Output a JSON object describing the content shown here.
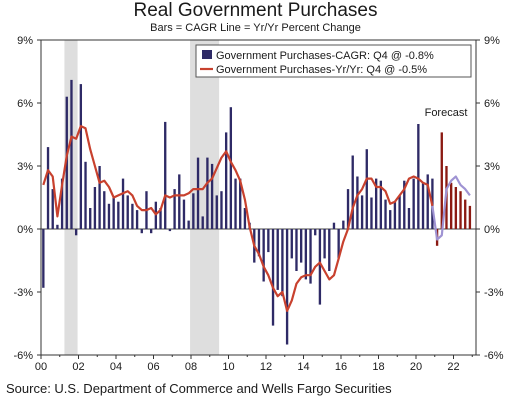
{
  "chart_data": {
    "type": "bar",
    "title": "Real Government Purchases",
    "subtitle": "Bars = CAGR     Line = Yr/Yr Percent Change",
    "x_start": 2000.0,
    "x_step": 0.25,
    "xlim": [
      2000,
      2023.2
    ],
    "x_tick_values": [
      2000,
      2002,
      2004,
      2006,
      2008,
      2010,
      2012,
      2014,
      2016,
      2018,
      2020,
      2022
    ],
    "x_tick_labels": [
      "00",
      "02",
      "04",
      "06",
      "08",
      "10",
      "12",
      "14",
      "16",
      "18",
      "20",
      "22"
    ],
    "ylim": [
      -6,
      9
    ],
    "y_ticks": [
      -6,
      -3,
      0,
      3,
      6,
      9
    ],
    "y_tick_labels": [
      "-6%",
      "-3%",
      "0%",
      "3%",
      "6%",
      "9%"
    ],
    "recession_shading": [
      [
        2001.25,
        2001.95
      ],
      [
        2007.95,
        2009.5
      ]
    ],
    "annotation": "Forecast",
    "series": [
      {
        "name": "Government Purchases-CAGR: Q4 @ -0.8%",
        "kind": "bar",
        "color": "#2e2a66",
        "forecast_color": "#8b1a12",
        "forecast_from_index": 84,
        "values": [
          -2.8,
          3.9,
          1.9,
          0.2,
          2.4,
          6.3,
          7.1,
          -0.3,
          6.9,
          3.2,
          1.0,
          2.0,
          3.0,
          1.8,
          1.2,
          1.5,
          1.3,
          2.4,
          1.6,
          1.2,
          0.9,
          -0.2,
          1.8,
          -0.2,
          1.3,
          1.0,
          5.1,
          -0.1,
          1.9,
          2.6,
          1.4,
          0.4,
          1.7,
          3.4,
          0.6,
          3.4,
          3.1,
          1.6,
          1.8,
          4.6,
          5.8,
          2.4,
          2.4,
          1.0,
          0.3,
          -1.6,
          -1.3,
          -2.5,
          -1.1,
          -4.6,
          -2.9,
          -3.2,
          -5.5,
          -1.4,
          -2.0,
          -1.6,
          -2.4,
          -2.6,
          -0.3,
          -3.6,
          -1.4,
          -2.0,
          0.3,
          -1.4,
          0.4,
          1.9,
          3.5,
          2.5,
          1.6,
          3.8,
          1.5,
          2.4,
          2.3,
          1.4,
          0.9,
          1.3,
          1.6,
          2.3,
          1.0,
          2.4,
          5.0,
          2.2,
          2.6,
          2.4,
          -0.8,
          4.6,
          3.0,
          2.2,
          2.0,
          1.8,
          1.4,
          1.1
        ],
        "projected_values": [
          -0.1,
          -0.5
        ]
      },
      {
        "name": "Government Purchases-Yr/Yr: Q4 @ -0.5%",
        "kind": "line",
        "color": "#c8412e",
        "forecast_color": "#9f93d3",
        "forecast_from_index": 84,
        "values": [
          2.1,
          2.8,
          2.5,
          0.6,
          2.1,
          3.5,
          4.4,
          4.3,
          4.9,
          4.8,
          3.8,
          3.0,
          2.2,
          2.3,
          2.0,
          1.5,
          1.6,
          1.7,
          1.8,
          1.6,
          1.1,
          0.9,
          0.9,
          1.0,
          0.7,
          0.9,
          1.6,
          1.5,
          1.6,
          1.6,
          1.6,
          1.7,
          1.9,
          1.9,
          1.9,
          2.2,
          2.4,
          2.9,
          3.4,
          3.7,
          3.2,
          2.8,
          2.3,
          1.4,
          0.1,
          -0.8,
          -1.2,
          -1.8,
          -2.2,
          -2.8,
          -3.2,
          -3.0,
          -3.9,
          -3.4,
          -2.6,
          -2.3,
          -2.2,
          -2.2,
          -1.8,
          -1.6,
          -2.0,
          -2.4,
          -2.2,
          -1.4,
          -0.6,
          0.0,
          1.0,
          1.6,
          1.9,
          2.4,
          2.4,
          2.0,
          2.0,
          1.8,
          1.2,
          1.3,
          1.6,
          1.9,
          2.4,
          2.5,
          2.4,
          2.2,
          2.1,
          1.1,
          -0.5,
          -0.3,
          1.9,
          2.3,
          2.5,
          2.1,
          1.9,
          1.6
        ]
      }
    ]
  },
  "source": "Source: U.S. Department of Commerce and Wells Fargo Securities"
}
